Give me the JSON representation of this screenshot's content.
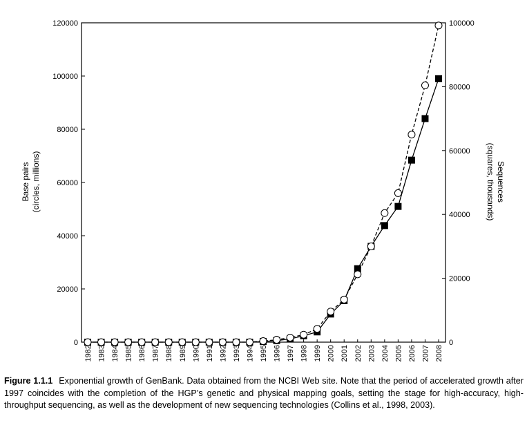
{
  "chart_data": {
    "type": "line",
    "x": [
      "1982",
      "1983",
      "1984",
      "1985",
      "1986",
      "1987",
      "1988",
      "1989",
      "1990",
      "1991",
      "1992",
      "1993",
      "1994",
      "1995",
      "1996",
      "1997",
      "1998",
      "1999",
      "2000",
      "2001",
      "2002",
      "2003",
      "2004",
      "2005",
      "2006",
      "2007",
      "2008"
    ],
    "ylabel_line1": "Base pairs",
    "ylabel_line2": "(circles, millions)",
    "y2label_line1": "Sequences",
    "y2label_line2": "(squares, thousands)",
    "ylim": [
      0,
      120000
    ],
    "y2lim": [
      0,
      100000
    ],
    "yticks": [
      0,
      20000,
      40000,
      60000,
      80000,
      100000,
      120000
    ],
    "y2ticks": [
      0,
      20000,
      40000,
      60000,
      80000,
      100000
    ],
    "grid": false,
    "series": [
      {
        "marker": "open-circle",
        "line": "dashed",
        "axis": "left",
        "values": [
          0,
          0,
          0,
          0,
          0,
          0,
          0,
          0,
          0,
          0,
          0,
          0,
          0,
          400,
          900,
          1700,
          2800,
          5000,
          11500,
          16000,
          25500,
          36000,
          48500,
          56000,
          78000,
          96500,
          119000
        ]
      },
      {
        "marker": "filled-square",
        "line": "solid",
        "axis": "right",
        "values": [
          0,
          0,
          0,
          0,
          0,
          0,
          0,
          0,
          0,
          0,
          0,
          0,
          0,
          200,
          500,
          1000,
          2000,
          3200,
          8800,
          13000,
          23000,
          30000,
          36500,
          42500,
          57000,
          70000,
          82500
        ]
      }
    ]
  },
  "caption": {
    "label": "Figure 1.1.1",
    "text": "Exponential growth of GenBank. Data obtained from the NCBI Web site. Note that the period of accelerated growth after 1997 coincides with the completion of the HGP’s genetic and physical mapping goals, setting the stage for high-accuracy, high-throughput sequencing, as well as the development of new sequencing technologies (Collins et al., 1998, 2003)."
  }
}
